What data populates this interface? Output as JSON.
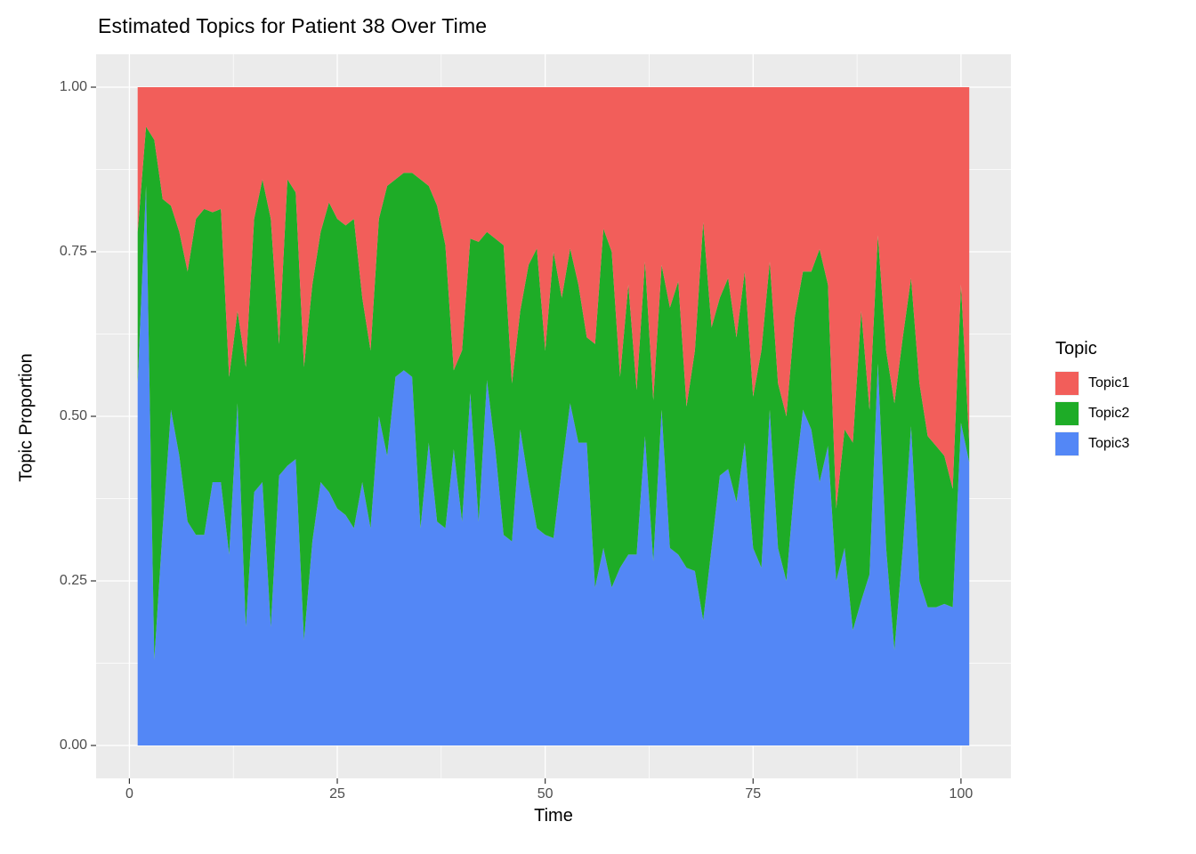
{
  "title": "Estimated Topics for Patient 38 Over Time",
  "panel": {
    "background": "#EBEBEB",
    "grid_major_color": "#FFFFFF",
    "grid_minor_color": "#FFFFFF",
    "tick_mark_color": "#333333"
  },
  "axes": {
    "x": {
      "label": "Time",
      "tick_labels": [
        "0",
        "25",
        "50",
        "75",
        "100"
      ],
      "tick_values": [
        0,
        25,
        50,
        75,
        100
      ],
      "minor_tick_values": [
        12.5,
        37.5,
        62.5,
        87.5
      ],
      "range": [
        -4,
        106
      ]
    },
    "y": {
      "label": "Topic Proportion",
      "tick_labels": [
        "0.00",
        "0.25",
        "0.50",
        "0.75",
        "1.00"
      ],
      "tick_values": [
        0,
        0.25,
        0.5,
        0.75,
        1.0
      ],
      "minor_tick_values": [
        0.125,
        0.375,
        0.625,
        0.875
      ],
      "range": [
        -0.05,
        1.05
      ]
    }
  },
  "legend": {
    "title": "Topic",
    "items": [
      {
        "label": "Topic1",
        "color": "#F25E5A"
      },
      {
        "label": "Topic2",
        "color": "#1EAC27"
      },
      {
        "label": "Topic3",
        "color": "#5387F6"
      }
    ]
  },
  "chart_data": {
    "type": "area",
    "stacked": true,
    "title": "Estimated Topics for Patient 38 Over Time",
    "xlabel": "Time",
    "ylabel": "Topic Proportion",
    "xlim": [
      1,
      101
    ],
    "ylim": [
      0,
      1
    ],
    "legend_position": "right",
    "grid": true,
    "x": [
      1,
      2,
      3,
      4,
      5,
      6,
      7,
      8,
      9,
      10,
      11,
      12,
      13,
      14,
      15,
      16,
      17,
      18,
      19,
      20,
      21,
      22,
      23,
      24,
      25,
      26,
      27,
      28,
      29,
      30,
      31,
      32,
      33,
      34,
      35,
      36,
      37,
      38,
      39,
      40,
      41,
      42,
      43,
      44,
      45,
      46,
      47,
      48,
      49,
      50,
      51,
      52,
      53,
      54,
      55,
      56,
      57,
      58,
      59,
      60,
      61,
      62,
      63,
      64,
      65,
      66,
      67,
      68,
      69,
      70,
      71,
      72,
      73,
      74,
      75,
      76,
      77,
      78,
      79,
      80,
      81,
      82,
      83,
      84,
      85,
      86,
      87,
      88,
      89,
      90,
      91,
      92,
      93,
      94,
      95,
      96,
      97,
      98,
      99,
      100,
      101
    ],
    "series": [
      {
        "name": "Topic1",
        "color": "#F25E5A",
        "values": [
          0.22,
          0.06,
          0.08,
          0.17,
          0.18,
          0.22,
          0.28,
          0.2,
          0.185,
          0.19,
          0.185,
          0.44,
          0.34,
          0.425,
          0.2,
          0.14,
          0.2,
          0.39,
          0.14,
          0.16,
          0.425,
          0.3,
          0.22,
          0.175,
          0.2,
          0.21,
          0.2,
          0.32,
          0.4,
          0.2,
          0.15,
          0.14,
          0.13,
          0.13,
          0.14,
          0.15,
          0.18,
          0.24,
          0.43,
          0.4,
          0.23,
          0.235,
          0.22,
          0.23,
          0.24,
          0.45,
          0.34,
          0.27,
          0.245,
          0.4,
          0.25,
          0.32,
          0.245,
          0.3,
          0.38,
          0.39,
          0.215,
          0.25,
          0.44,
          0.3,
          0.46,
          0.265,
          0.475,
          0.27,
          0.335,
          0.295,
          0.485,
          0.4,
          0.205,
          0.365,
          0.32,
          0.29,
          0.38,
          0.28,
          0.47,
          0.4,
          0.265,
          0.45,
          0.5,
          0.35,
          0.28,
          0.28,
          0.246,
          0.3,
          0.64,
          0.52,
          0.54,
          0.34,
          0.49,
          0.225,
          0.4,
          0.48,
          0.38,
          0.29,
          0.45,
          0.53,
          0.545,
          0.56,
          0.61,
          0.3,
          0.54
        ]
      },
      {
        "name": "Topic2",
        "color": "#1EAC27",
        "values": [
          0.23,
          0.09,
          0.79,
          0.5,
          0.31,
          0.34,
          0.38,
          0.48,
          0.495,
          0.41,
          0.415,
          0.27,
          0.14,
          0.395,
          0.415,
          0.46,
          0.62,
          0.2,
          0.435,
          0.405,
          0.415,
          0.39,
          0.38,
          0.44,
          0.44,
          0.44,
          0.47,
          0.28,
          0.27,
          0.3,
          0.41,
          0.3,
          0.3,
          0.31,
          0.53,
          0.39,
          0.48,
          0.43,
          0.12,
          0.26,
          0.235,
          0.425,
          0.225,
          0.32,
          0.44,
          0.24,
          0.18,
          0.33,
          0.425,
          0.28,
          0.435,
          0.26,
          0.235,
          0.24,
          0.16,
          0.37,
          0.485,
          0.51,
          0.29,
          0.41,
          0.25,
          0.265,
          0.245,
          0.22,
          0.365,
          0.415,
          0.245,
          0.335,
          0.605,
          0.335,
          0.27,
          0.29,
          0.25,
          0.26,
          0.23,
          0.33,
          0.225,
          0.25,
          0.25,
          0.25,
          0.21,
          0.24,
          0.354,
          0.245,
          0.11,
          0.18,
          0.285,
          0.44,
          0.25,
          0.195,
          0.3,
          0.375,
          0.32,
          0.225,
          0.3,
          0.26,
          0.245,
          0.225,
          0.18,
          0.21,
          0.03
        ]
      },
      {
        "name": "Topic3",
        "color": "#5387F6",
        "values": [
          0.55,
          0.85,
          0.13,
          0.33,
          0.51,
          0.44,
          0.34,
          0.32,
          0.32,
          0.4,
          0.4,
          0.29,
          0.52,
          0.18,
          0.385,
          0.4,
          0.18,
          0.41,
          0.425,
          0.435,
          0.16,
          0.31,
          0.4,
          0.385,
          0.36,
          0.35,
          0.33,
          0.4,
          0.33,
          0.5,
          0.44,
          0.56,
          0.57,
          0.56,
          0.33,
          0.46,
          0.34,
          0.33,
          0.45,
          0.34,
          0.535,
          0.34,
          0.555,
          0.45,
          0.32,
          0.31,
          0.48,
          0.4,
          0.33,
          0.32,
          0.315,
          0.42,
          0.52,
          0.46,
          0.46,
          0.24,
          0.3,
          0.24,
          0.27,
          0.29,
          0.29,
          0.47,
          0.28,
          0.51,
          0.3,
          0.29,
          0.27,
          0.265,
          0.19,
          0.3,
          0.41,
          0.42,
          0.37,
          0.46,
          0.3,
          0.27,
          0.51,
          0.3,
          0.25,
          0.4,
          0.51,
          0.48,
          0.4,
          0.455,
          0.25,
          0.3,
          0.175,
          0.22,
          0.26,
          0.58,
          0.3,
          0.145,
          0.3,
          0.485,
          0.25,
          0.21,
          0.21,
          0.215,
          0.21,
          0.49,
          0.43
        ]
      }
    ]
  }
}
